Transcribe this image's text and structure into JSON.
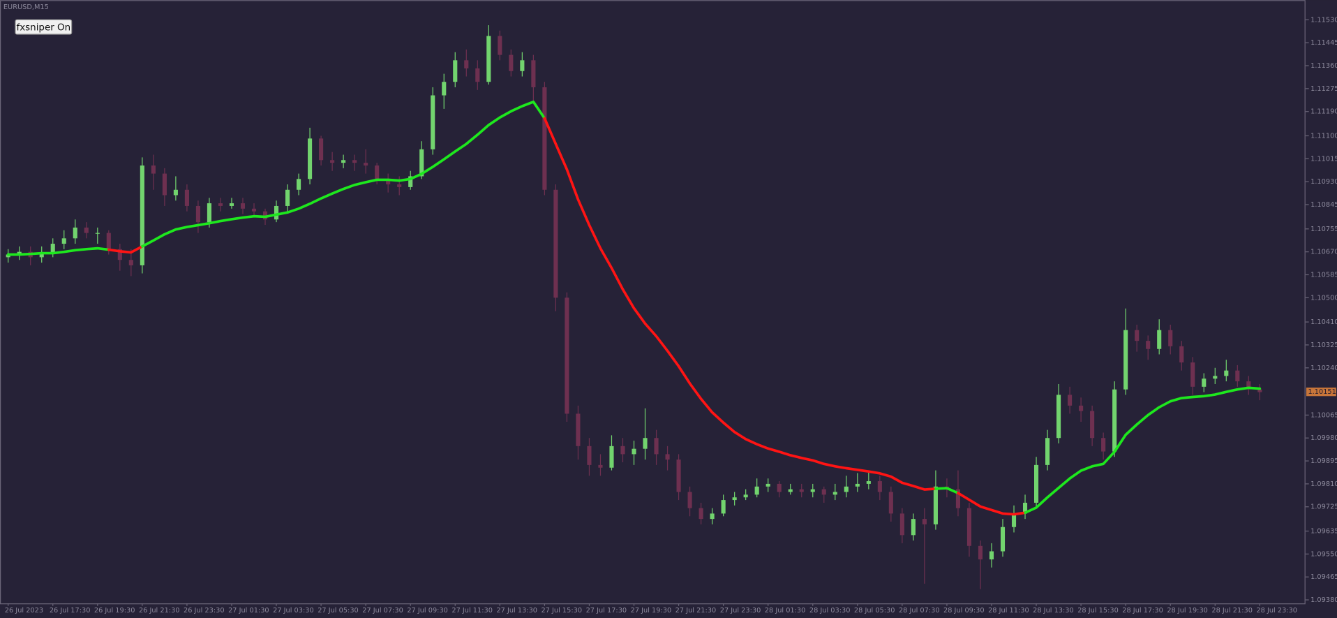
{
  "chart_data": {
    "type": "candlestick",
    "title": "EURUSD,M15",
    "button": "fxsniper On",
    "current_price": 1.10151,
    "bull_color": "#72d46e",
    "bear_color": "#6e3050",
    "ma_up_color": "#1ee81e",
    "ma_down_color": "#ff1414",
    "ylim": [
      1.09367,
      1.11603
    ],
    "yticks": [
      {
        "value": 1.1153,
        "label": "1.11530"
      },
      1.11445,
      {
        "value": 1.1136,
        "label": "1.11360"
      },
      1.11275,
      {
        "value": 1.1119,
        "label": "1.11190"
      },
      {
        "value": 1.111,
        "label": "1.11100"
      },
      1.11015,
      {
        "value": 1.1093,
        "label": "1.10930"
      },
      1.10845,
      1.10755,
      {
        "value": 1.1067,
        "label": "1.10670"
      },
      1.10585,
      {
        "value": 1.105,
        "label": "1.10500"
      },
      {
        "value": 1.1041,
        "label": "1.10410"
      },
      1.10325,
      {
        "value": 1.1024,
        "label": "1.10240"
      },
      1.10065,
      {
        "value": 1.0998,
        "label": "1.09980"
      },
      1.09895,
      {
        "value": 1.0981,
        "label": "1.09810"
      },
      1.09725,
      1.09635,
      {
        "value": 1.0955,
        "label": "1.09550"
      },
      1.09465,
      {
        "value": 1.0938,
        "label": "1.09380"
      }
    ],
    "categories": [
      "26 Jul 2023",
      null,
      null,
      null,
      "26 Jul 17:30",
      null,
      null,
      null,
      "26 Jul 19:30",
      null,
      null,
      null,
      "26 Jul 21:30",
      null,
      null,
      null,
      "26 Jul 23:30",
      null,
      null,
      null,
      "27 Jul 01:30",
      null,
      null,
      null,
      "27 Jul 03:30",
      null,
      null,
      null,
      "27 Jul 05:30",
      null,
      null,
      null,
      "27 Jul 07:30",
      null,
      null,
      null,
      "27 Jul 09:30",
      null,
      null,
      null,
      "27 Jul 11:30",
      null,
      null,
      null,
      "27 Jul 13:30",
      null,
      null,
      null,
      "27 Jul 15:30",
      null,
      null,
      null,
      "27 Jul 17:30",
      null,
      null,
      null,
      "27 Jul 19:30",
      null,
      null,
      null,
      "27 Jul 21:30",
      null,
      null,
      null,
      "27 Jul 23:30",
      null,
      null,
      null,
      "28 Jul 01:30",
      null,
      null,
      null,
      "28 Jul 03:30",
      null,
      null,
      null,
      "28 Jul 05:30",
      null,
      null,
      null,
      "28 Jul 07:30",
      null,
      null,
      null,
      "28 Jul 09:30",
      null,
      null,
      null,
      "28 Jul 11:30",
      null,
      null,
      null,
      "28 Jul 13:30",
      null,
      null,
      null,
      "28 Jul 15:30",
      null,
      null,
      null,
      "28 Jul 17:30",
      null,
      null,
      null,
      "28 Jul 19:30",
      null,
      null,
      null,
      "28 Jul 21:30",
      null,
      null,
      null,
      "28 Jul 23:30"
    ],
    "ohlc": [
      [
        1.1065,
        1.1068,
        1.1063,
        1.1066
      ],
      [
        1.1066,
        1.1069,
        1.1064,
        1.1067
      ],
      [
        1.1067,
        1.1069,
        1.1062,
        1.1065
      ],
      [
        1.1065,
        1.1069,
        1.1063,
        1.10665
      ],
      [
        1.10665,
        1.1072,
        1.1065,
        1.107
      ],
      [
        1.107,
        1.1075,
        1.1068,
        1.1072
      ],
      [
        1.1072,
        1.1079,
        1.107,
        1.1076
      ],
      [
        1.1076,
        1.1078,
        1.1072,
        1.1074
      ],
      [
        1.1074,
        1.1076,
        1.107,
        1.1074
      ],
      [
        1.1074,
        1.1075,
        1.1066,
        1.1068
      ],
      [
        1.1068,
        1.107,
        1.106,
        1.1064
      ],
      [
        1.1064,
        1.1068,
        1.1058,
        1.1062
      ],
      [
        1.1062,
        1.1102,
        1.1059,
        1.1099
      ],
      [
        1.1099,
        1.1103,
        1.109,
        1.1096
      ],
      [
        1.1096,
        1.1098,
        1.1084,
        1.1088
      ],
      [
        1.1088,
        1.1095,
        1.1086,
        1.109
      ],
      [
        1.109,
        1.1092,
        1.1082,
        1.1084
      ],
      [
        1.1084,
        1.1086,
        1.1074,
        1.1078
      ],
      [
        1.1078,
        1.1087,
        1.1076,
        1.1085
      ],
      [
        1.1085,
        1.1087,
        1.1082,
        1.1084
      ],
      [
        1.1084,
        1.1087,
        1.1083,
        1.1085
      ],
      [
        1.1085,
        1.1087,
        1.1081,
        1.1083
      ],
      [
        1.1083,
        1.1085,
        1.108,
        1.1082
      ],
      [
        1.1082,
        1.1083,
        1.1077,
        1.1079
      ],
      [
        1.1079,
        1.1086,
        1.1078,
        1.1084
      ],
      [
        1.1084,
        1.1092,
        1.1082,
        1.109
      ],
      [
        1.109,
        1.1096,
        1.1088,
        1.1094
      ],
      [
        1.1094,
        1.1113,
        1.1092,
        1.1109
      ],
      [
        1.1109,
        1.111,
        1.1099,
        1.1101
      ],
      [
        1.1101,
        1.1104,
        1.1097,
        1.11
      ],
      [
        1.11,
        1.1103,
        1.1098,
        1.1101
      ],
      [
        1.1101,
        1.1103,
        1.1097,
        1.11
      ],
      [
        1.11,
        1.1105,
        1.1096,
        1.1099
      ],
      [
        1.1099,
        1.11,
        1.1092,
        1.1094
      ],
      [
        1.1094,
        1.1096,
        1.1089,
        1.1092
      ],
      [
        1.1092,
        1.1095,
        1.1088,
        1.1091
      ],
      [
        1.1091,
        1.1097,
        1.109,
        1.1095
      ],
      [
        1.1095,
        1.1108,
        1.1094,
        1.1105
      ],
      [
        1.1105,
        1.1128,
        1.1103,
        1.1125
      ],
      [
        1.1125,
        1.1133,
        1.112,
        1.113
      ],
      [
        1.113,
        1.1141,
        1.1128,
        1.1138
      ],
      [
        1.1138,
        1.1142,
        1.1132,
        1.1135
      ],
      [
        1.1135,
        1.1138,
        1.1127,
        1.113
      ],
      [
        1.113,
        1.1151,
        1.1129,
        1.1147
      ],
      [
        1.1147,
        1.1149,
        1.1138,
        1.114
      ],
      [
        1.114,
        1.1142,
        1.1132,
        1.1134
      ],
      [
        1.1134,
        1.1141,
        1.1132,
        1.1138
      ],
      [
        1.1138,
        1.114,
        1.1123,
        1.1128
      ],
      [
        1.1128,
        1.113,
        1.1088,
        1.109
      ],
      [
        1.109,
        1.1092,
        1.1045,
        1.105
      ],
      [
        1.105,
        1.1052,
        1.1004,
        1.1007
      ],
      [
        1.1007,
        1.101,
        1.099,
        1.0995
      ],
      [
        1.0995,
        1.0998,
        1.0984,
        1.0988
      ],
      [
        1.0988,
        1.0992,
        1.0984,
        1.0987
      ],
      [
        1.0987,
        1.0999,
        1.0986,
        1.0995
      ],
      [
        1.0995,
        1.0998,
        1.0989,
        1.0992
      ],
      [
        1.0992,
        1.0997,
        1.0988,
        1.0994
      ],
      [
        1.0994,
        1.1009,
        1.099,
        1.0998
      ],
      [
        1.0998,
        1.1001,
        1.0988,
        1.0992
      ],
      [
        1.0992,
        1.0995,
        1.0986,
        1.099
      ],
      [
        1.099,
        1.0992,
        1.0975,
        1.0978
      ],
      [
        1.0978,
        1.098,
        1.0969,
        1.0972
      ],
      [
        1.0972,
        1.0974,
        1.0966,
        1.0968
      ],
      [
        1.0968,
        1.0972,
        1.0966,
        1.097
      ],
      [
        1.097,
        1.0977,
        1.0969,
        1.0975
      ],
      [
        1.0975,
        1.0978,
        1.0973,
        1.0976
      ],
      [
        1.0976,
        1.0979,
        1.0975,
        1.0977
      ],
      [
        1.0977,
        1.0983,
        1.0976,
        1.098
      ],
      [
        1.098,
        1.0983,
        1.0978,
        1.0981
      ],
      [
        1.0981,
        1.0982,
        1.0976,
        1.0978
      ],
      [
        1.0978,
        1.0981,
        1.0977,
        1.0979
      ],
      [
        1.0979,
        1.0981,
        1.0976,
        1.0978
      ],
      [
        1.0978,
        1.0981,
        1.0976,
        1.0979
      ],
      [
        1.0979,
        1.098,
        1.0974,
        1.0977
      ],
      [
        1.0977,
        1.0981,
        1.0975,
        1.0978
      ],
      [
        1.0978,
        1.0984,
        1.0976,
        1.098
      ],
      [
        1.098,
        1.0985,
        1.0978,
        1.0981
      ],
      [
        1.0981,
        1.0986,
        1.0979,
        1.0982
      ],
      [
        1.0982,
        1.0984,
        1.0975,
        1.0978
      ],
      [
        1.0978,
        1.098,
        1.0967,
        1.097
      ],
      [
        1.097,
        1.0972,
        1.0959,
        1.0962
      ],
      [
        1.0962,
        1.097,
        1.096,
        1.0968
      ],
      [
        1.0968,
        1.0972,
        1.0944,
        1.0966
      ],
      [
        1.0966,
        1.0986,
        1.0964,
        1.098
      ],
      [
        1.098,
        1.0983,
        1.0976,
        1.0979
      ],
      [
        1.0979,
        1.0986,
        1.0969,
        1.0972
      ],
      [
        1.0972,
        1.0974,
        1.0954,
        1.0958
      ],
      [
        1.0958,
        1.096,
        1.0942,
        1.0953
      ],
      [
        1.0953,
        1.0959,
        1.095,
        1.0956
      ],
      [
        1.0956,
        1.0968,
        1.0954,
        1.0965
      ],
      [
        1.0965,
        1.0973,
        1.0963,
        1.097
      ],
      [
        1.097,
        1.0977,
        1.0968,
        1.0974
      ],
      [
        1.0974,
        1.0991,
        1.0972,
        1.0988
      ],
      [
        1.0988,
        1.1001,
        1.0986,
        1.0998
      ],
      [
        1.0998,
        1.1018,
        1.0996,
        1.1014
      ],
      [
        1.1014,
        1.1017,
        1.1007,
        1.101
      ],
      [
        1.101,
        1.1013,
        1.1004,
        1.1008
      ],
      [
        1.1008,
        1.101,
        1.0995,
        1.0998
      ],
      [
        1.0998,
        1.1,
        1.099,
        1.0993
      ],
      [
        1.0993,
        1.1019,
        1.0991,
        1.1016
      ],
      [
        1.1016,
        1.1046,
        1.1014,
        1.1038
      ],
      [
        1.1038,
        1.104,
        1.103,
        1.1034
      ],
      [
        1.1034,
        1.1036,
        1.1027,
        1.1031
      ],
      [
        1.1031,
        1.1042,
        1.1029,
        1.1038
      ],
      [
        1.1038,
        1.104,
        1.1029,
        1.1032
      ],
      [
        1.1032,
        1.1034,
        1.1023,
        1.1026
      ],
      [
        1.1026,
        1.1028,
        1.1014,
        1.1017
      ],
      [
        1.1017,
        1.1022,
        1.1015,
        1.102
      ],
      [
        1.102,
        1.1024,
        1.1018,
        1.1021
      ],
      [
        1.1021,
        1.1027,
        1.1019,
        1.1023
      ],
      [
        1.1023,
        1.1025,
        1.1017,
        1.1019
      ],
      [
        1.1019,
        1.1021,
        1.1014,
        1.1016
      ],
      [
        1.1016,
        1.1018,
        1.1012,
        1.1015
      ]
    ],
    "ma": [
      1.1066,
      1.1066,
      1.10662,
      1.10665,
      1.10665,
      1.1067,
      1.10676,
      1.1068,
      1.10683,
      1.10678,
      1.10672,
      1.10668,
      1.1069,
      1.10712,
      1.10735,
      1.10753,
      1.10762,
      1.10769,
      1.10776,
      1.10784,
      1.10791,
      1.10797,
      1.10802,
      1.108,
      1.10808,
      1.10816,
      1.1083,
      1.10848,
      1.10868,
      1.10886,
      1.10903,
      1.10918,
      1.10928,
      1.10937,
      1.10937,
      1.10934,
      1.1094,
      1.10959,
      1.10985,
      1.11013,
      1.11042,
      1.1107,
      1.11104,
      1.1114,
      1.11168,
      1.11191,
      1.1121,
      1.11226,
      1.11165,
      1.1107,
      1.10975,
      1.10864,
      1.10769,
      1.10683,
      1.1061,
      1.10531,
      1.10461,
      1.10404,
      1.10357,
      1.10303,
      1.10246,
      1.10182,
      1.10125,
      1.10075,
      1.10037,
      1.10002,
      1.09976,
      1.09957,
      1.09941,
      1.09929,
      1.09916,
      1.09906,
      1.09897,
      1.09884,
      1.09875,
      1.09868,
      1.09862,
      1.09856,
      1.09849,
      1.09837,
      1.09814,
      1.09802,
      1.09789,
      1.09792,
      1.09794,
      1.09776,
      1.09751,
      1.09726,
      1.09713,
      1.097,
      1.09697,
      1.09703,
      1.09722,
      1.0976,
      1.09795,
      1.0983,
      1.09859,
      1.09875,
      1.09884,
      1.09929,
      1.09992,
      1.1003,
      1.10065,
      1.10094,
      1.10116,
      1.10128,
      1.10132,
      1.10135,
      1.10141,
      1.10151,
      1.1016,
      1.10166,
      1.10163
    ]
  }
}
